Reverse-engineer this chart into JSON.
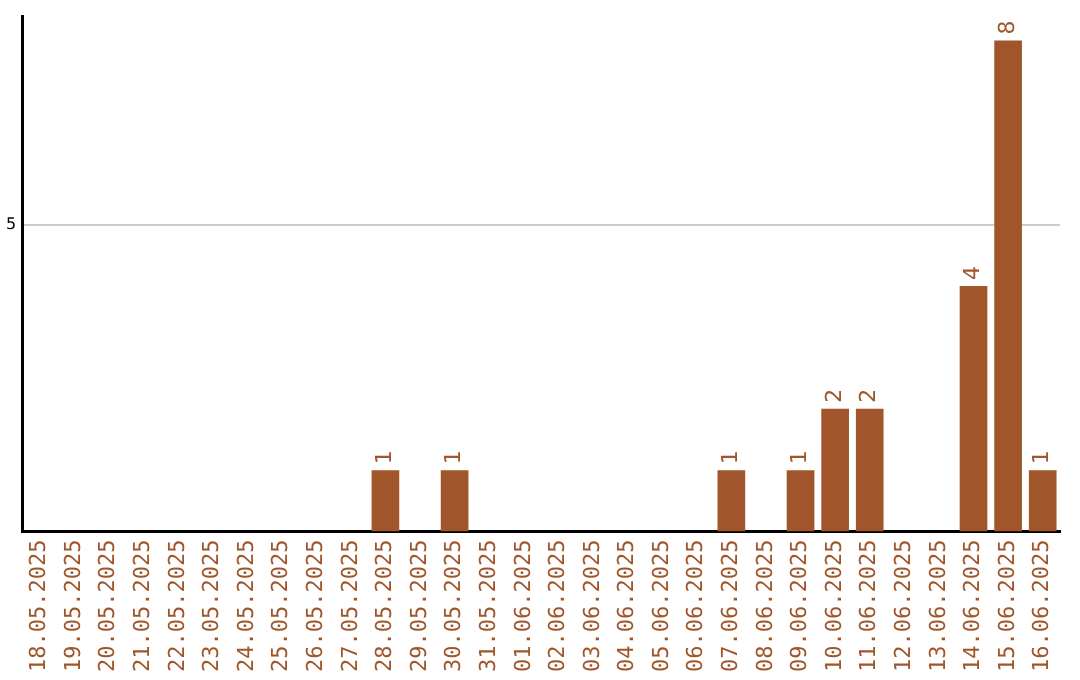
{
  "chart_data": {
    "type": "bar",
    "categories": [
      "18.05.2025",
      "19.05.2025",
      "20.05.2025",
      "21.05.2025",
      "22.05.2025",
      "23.05.2025",
      "24.05.2025",
      "25.05.2025",
      "26.05.2025",
      "27.05.2025",
      "28.05.2025",
      "29.05.2025",
      "30.05.2025",
      "31.05.2025",
      "01.06.2025",
      "02.06.2025",
      "03.06.2025",
      "04.06.2025",
      "05.06.2025",
      "06.06.2025",
      "07.06.2025",
      "08.06.2025",
      "09.06.2025",
      "10.06.2025",
      "11.06.2025",
      "12.06.2025",
      "13.06.2025",
      "14.06.2025",
      "15.06.2025",
      "16.06.2025"
    ],
    "values": [
      0,
      0,
      0,
      0,
      0,
      0,
      0,
      0,
      0,
      0,
      1,
      0,
      1,
      0,
      0,
      0,
      0,
      0,
      0,
      0,
      1,
      0,
      1,
      2,
      2,
      0,
      0,
      4,
      8,
      1
    ],
    "value_labels": [
      null,
      null,
      null,
      null,
      null,
      null,
      null,
      null,
      null,
      null,
      "1",
      null,
      "1",
      null,
      null,
      null,
      null,
      null,
      null,
      null,
      "1",
      null,
      "1",
      "2",
      "2",
      null,
      null,
      "4",
      "8",
      "1"
    ],
    "color": "#a0562a",
    "ylim": [
      0,
      8.4
    ],
    "yticks": [
      5
    ],
    "grid": "y",
    "legend": false
  }
}
